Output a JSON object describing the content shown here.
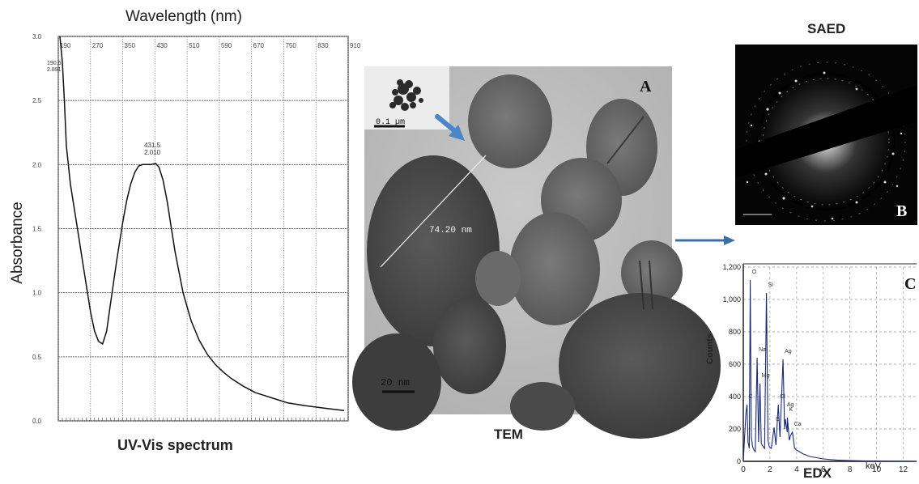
{
  "uvvis": {
    "top_label": "Wavelength (nm)",
    "y_label": "Absorbance",
    "caption": "UV-Vis spectrum",
    "x_ticks": [
      "190",
      "270",
      "350",
      "430",
      "510",
      "590",
      "670",
      "750",
      "830",
      "910"
    ],
    "y_ticks": [
      "3.0",
      "2.5",
      "2.0",
      "1.5",
      "1.0",
      "0.5",
      "0.0"
    ],
    "peak_label_wavelength": "431.5",
    "peak_label_abs": "2.010",
    "top_corner_labels": [
      "190.5",
      "2.891"
    ]
  },
  "tem": {
    "caption": "TEM",
    "letter": "A",
    "measure_label": "74.20 nm",
    "inset_scale_label": "0.1 µm",
    "scale_label": "20 nm"
  },
  "saed": {
    "title": "SAED",
    "letter": "B"
  },
  "edx": {
    "caption": "EDX",
    "letter": "C",
    "y_label": "Counts",
    "x_label": "keV",
    "peak_labels": [
      "Si",
      "Ag",
      "Na",
      "C",
      "Mg",
      "S",
      "Cl",
      "Ag",
      "K",
      "Ca",
      "O"
    ]
  },
  "chart_data": [
    {
      "type": "line",
      "title": "UV-Vis spectrum",
      "xlabel": "Wavelength (nm)",
      "ylabel": "Absorbance",
      "xlim": [
        190,
        910
      ],
      "ylim": [
        0.0,
        3.0
      ],
      "x_ticks": [
        190,
        270,
        350,
        430,
        510,
        590,
        670,
        750,
        830,
        910
      ],
      "y_ticks": [
        0.0,
        0.5,
        1.0,
        1.5,
        2.0,
        2.5,
        3.0
      ],
      "grid": true,
      "series": [
        {
          "x": [
            194,
            200,
            205,
            210,
            220,
            230,
            240,
            250,
            260,
            270,
            280,
            290,
            300,
            310,
            320,
            335,
            350,
            360,
            370,
            380,
            390,
            400,
            410,
            420,
            431.5,
            440,
            450,
            460,
            470,
            480,
            500,
            520,
            540,
            560,
            580,
            600,
            620,
            650,
            680,
            700,
            730,
            760,
            800,
            850,
            900
          ],
          "y": [
            3.0,
            2.8,
            2.5,
            2.15,
            1.85,
            1.65,
            1.45,
            1.25,
            1.05,
            0.85,
            0.7,
            0.62,
            0.6,
            0.7,
            0.92,
            1.25,
            1.55,
            1.72,
            1.85,
            1.94,
            1.99,
            2.0,
            2.0,
            2.0,
            2.01,
            1.98,
            1.88,
            1.72,
            1.52,
            1.32,
            1.0,
            0.78,
            0.63,
            0.52,
            0.44,
            0.38,
            0.33,
            0.27,
            0.22,
            0.2,
            0.17,
            0.14,
            0.12,
            0.1,
            0.08
          ]
        }
      ],
      "annotations": [
        {
          "x": 431.5,
          "y": 2.01,
          "text": "431.5\n2.010"
        }
      ]
    },
    {
      "type": "line",
      "title": "EDX",
      "xlabel": "keV",
      "ylabel": "Counts",
      "xlim": [
        0,
        13
      ],
      "ylim": [
        0,
        1200
      ],
      "x_ticks": [
        0,
        2,
        4,
        6,
        8,
        10,
        12
      ],
      "y_ticks": [
        0,
        200,
        400,
        600,
        800,
        1000,
        1200
      ],
      "grid": true,
      "series": [
        {
          "x": [
            0.0,
            0.1,
            0.2,
            0.277,
            0.35,
            0.45,
            0.525,
            0.6,
            0.7,
            0.8,
            0.9,
            1.04,
            1.15,
            1.254,
            1.35,
            1.5,
            1.6,
            1.74,
            1.85,
            1.95,
            2.1,
            2.31,
            2.45,
            2.622,
            2.75,
            2.984,
            3.1,
            3.151,
            3.3,
            3.313,
            3.45,
            3.55,
            3.69,
            3.85,
            4.0,
            4.5,
            5.0,
            6.0,
            7.0,
            8.0,
            9.0,
            10.0,
            12.0,
            13.0
          ],
          "y": [
            0,
            150,
            300,
            350,
            120,
            80,
            1120,
            150,
            90,
            70,
            60,
            640,
            120,
            480,
            110,
            90,
            80,
            1040,
            130,
            90,
            80,
            210,
            100,
            350,
            150,
            630,
            200,
            260,
            180,
            270,
            130,
            160,
            180,
            80,
            70,
            45,
            30,
            15,
            8,
            5,
            3,
            2,
            1,
            0
          ]
        }
      ],
      "peak_labels": [
        {
          "x": 0.525,
          "text": "O"
        },
        {
          "x": 1.74,
          "text": "Si"
        },
        {
          "x": 2.984,
          "text": "Ag"
        },
        {
          "x": 1.04,
          "text": "Na"
        },
        {
          "x": 0.277,
          "text": "C"
        },
        {
          "x": 1.254,
          "text": "Mg"
        },
        {
          "x": 2.31,
          "text": "S"
        },
        {
          "x": 2.622,
          "text": "Cl"
        },
        {
          "x": 3.151,
          "text": "Ag"
        },
        {
          "x": 3.313,
          "text": "K"
        },
        {
          "x": 3.69,
          "text": "Ca"
        }
      ]
    }
  ]
}
